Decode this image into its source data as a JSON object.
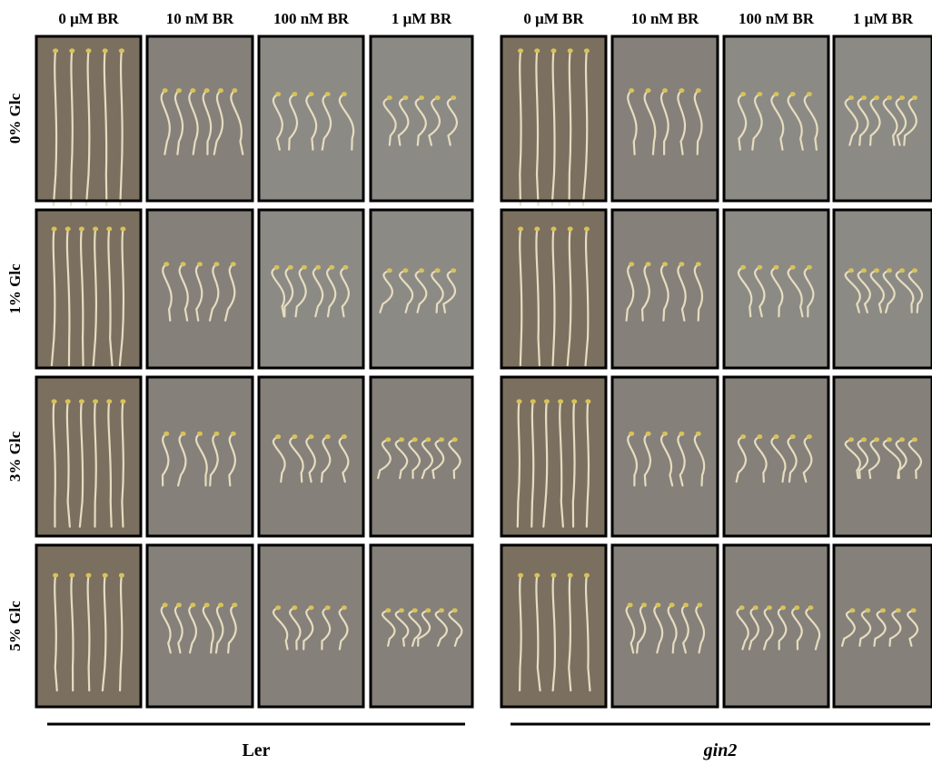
{
  "column_headers": [
    "0 μM BR",
    "10 nM BR",
    "100 nM BR",
    "1 μM BR",
    "0 μM BR",
    "10 nM BR",
    "100 nM BR",
    "1 μM BR"
  ],
  "row_labels": [
    "0% Glc",
    "1% Glc",
    "3% Glc",
    "5% Glc"
  ],
  "genotypes": [
    "Ler",
    "gin2"
  ]
}
